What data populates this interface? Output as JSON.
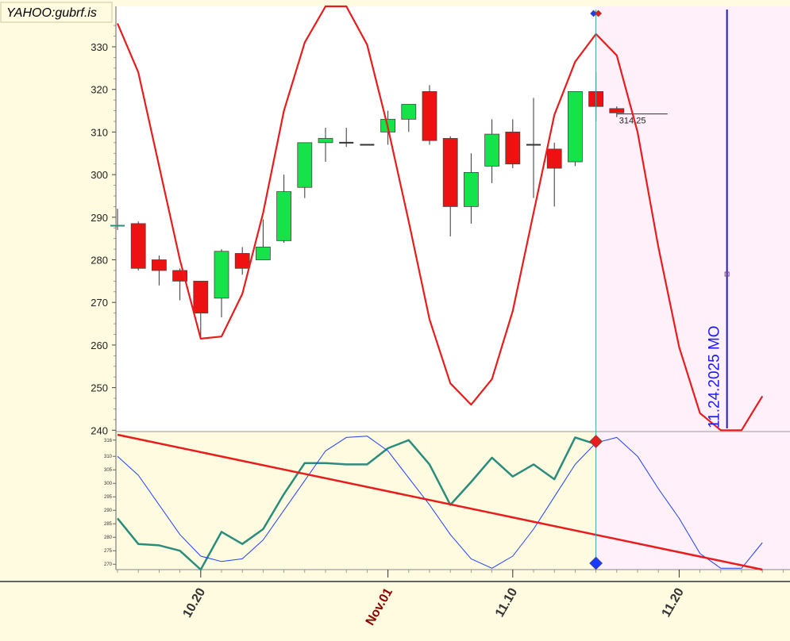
{
  "chart_data": {
    "type": "candlestick",
    "symbol": "YAHOO:gubrf.is",
    "price_axis": {
      "ticks": [
        240,
        250,
        260,
        270,
        280,
        290,
        300,
        310,
        320,
        330
      ],
      "ylim": [
        239.5,
        339.5
      ]
    },
    "osc_axis": {
      "ticks": [
        270,
        275,
        280,
        285,
        290,
        295,
        300,
        305,
        310,
        316
      ],
      "ylim": [
        268,
        318
      ]
    },
    "date_ticks": [
      "10.20",
      "Nov.01",
      "11.10",
      "11.20"
    ],
    "date_tick_index": [
      4,
      13,
      19,
      27
    ],
    "date_tick_colors": [
      "#333333",
      "#8b0000",
      "#333333",
      "#333333"
    ],
    "last_price_label": "314.25",
    "last_price": 314.25,
    "vertical_line_label": "11.24.2025 MO",
    "projection_start_index": 23,
    "vertical_line_index": 29.3,
    "candles": [
      {
        "o": 288,
        "h": 292,
        "l": 287,
        "c": 288
      },
      {
        "o": 288.5,
        "h": 289,
        "l": 277.5,
        "c": 278
      },
      {
        "o": 280,
        "h": 281,
        "l": 274,
        "c": 277.5
      },
      {
        "o": 277.5,
        "h": 278,
        "l": 270.5,
        "c": 275
      },
      {
        "o": 275,
        "h": 275,
        "l": 262,
        "c": 267.5
      },
      {
        "o": 271,
        "h": 282.5,
        "l": 266.5,
        "c": 282
      },
      {
        "o": 281.5,
        "h": 283,
        "l": 276.5,
        "c": 278
      },
      {
        "o": 280,
        "h": 289.5,
        "l": 280,
        "c": 283
      },
      {
        "o": 284.5,
        "h": 300,
        "l": 284,
        "c": 296
      },
      {
        "o": 297,
        "h": 307.5,
        "l": 294.5,
        "c": 307.5
      },
      {
        "o": 307.5,
        "h": 311,
        "l": 303,
        "c": 308.5
      },
      {
        "o": 307.5,
        "h": 311,
        "l": 306.5,
        "c": 307.5
      },
      {
        "o": 307,
        "h": 307,
        "l": 307,
        "c": 307
      },
      {
        "o": 310,
        "h": 315,
        "l": 307,
        "c": 313
      },
      {
        "o": 313,
        "h": 316,
        "l": 310,
        "c": 316.5
      },
      {
        "o": 319.5,
        "h": 321,
        "l": 307,
        "c": 308
      },
      {
        "o": 308.5,
        "h": 309,
        "l": 285.5,
        "c": 292.5
      },
      {
        "o": 292.5,
        "h": 305,
        "l": 288.5,
        "c": 300.5
      },
      {
        "o": 302,
        "h": 313,
        "l": 298,
        "c": 309.5
      },
      {
        "o": 310,
        "h": 313,
        "l": 301.5,
        "c": 302.5
      },
      {
        "o": 307,
        "h": 318,
        "l": 294.5,
        "c": 307
      },
      {
        "o": 306,
        "h": 307.5,
        "l": 292.5,
        "c": 301.5
      },
      {
        "o": 303,
        "h": 319.5,
        "l": 302,
        "c": 319.5
      },
      {
        "o": 319.5,
        "h": 324,
        "l": 312.5,
        "c": 316
      },
      {
        "o": 315.5,
        "h": 316,
        "l": 313.5,
        "c": 314.5
      }
    ],
    "cycle_projection": {
      "x": [
        0,
        1,
        2,
        3,
        4,
        5,
        6,
        7,
        8,
        9,
        10,
        11,
        12,
        13,
        14,
        15,
        16,
        17,
        18,
        19,
        20,
        21,
        22,
        23,
        24,
        25,
        26,
        27,
        28,
        29,
        30,
        31
      ],
      "y": [
        335.5,
        324,
        302,
        280,
        261.5,
        262,
        272,
        291,
        315,
        331,
        339.5,
        339.5,
        330.5,
        311,
        289,
        266,
        251,
        246,
        252,
        268,
        291,
        314,
        326.5,
        333,
        328,
        310,
        283,
        259.5,
        244,
        240,
        240,
        248
      ]
    },
    "osc_series": [
      {
        "name": "",
        "color": "#2a8c7c",
        "x": [
          0,
          1,
          2,
          3,
          4,
          5,
          6,
          7,
          8,
          9,
          10,
          11,
          12,
          13,
          14,
          15,
          16,
          17,
          18,
          19,
          20,
          21,
          22,
          23
        ],
        "y": [
          287,
          277.5,
          277,
          275,
          268,
          282,
          277.5,
          283,
          296,
          307.5,
          307.5,
          307,
          307,
          313,
          316,
          307,
          292,
          300.5,
          309.5,
          302.5,
          307,
          301.5,
          317,
          314.5
        ]
      },
      {
        "name": "",
        "color": "#1f3fff",
        "x": [
          0,
          1,
          2,
          3,
          4,
          5,
          6,
          7,
          8,
          9,
          10,
          11,
          12,
          13,
          14,
          15,
          16,
          17,
          18,
          19,
          20,
          21,
          22,
          23,
          24,
          25,
          26,
          27,
          28,
          29,
          30,
          31
        ],
        "y": [
          310,
          303,
          292,
          281,
          273,
          271,
          272,
          279,
          290,
          301,
          312,
          317,
          317.5,
          312,
          302,
          292,
          281,
          272,
          268.5,
          273,
          283,
          295,
          307,
          315,
          317,
          310,
          298,
          287,
          274,
          268.5,
          268.5,
          278
        ]
      },
      {
        "name": "",
        "color": "#e81c1c",
        "x": [
          0,
          31
        ],
        "y": [
          318,
          268
        ]
      }
    ]
  }
}
